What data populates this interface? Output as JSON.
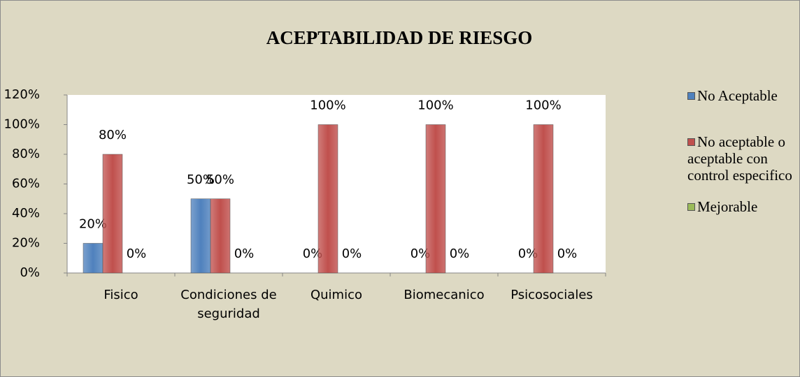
{
  "chart_data": {
    "type": "bar",
    "title": "ACEPTABILIDAD DE RIESGO",
    "categories": [
      "Fisico",
      "Condiciones de seguridad",
      "Quimico",
      "Biomecanico",
      "Psicosociales"
    ],
    "series": [
      {
        "name": "No Aceptable",
        "color": "#4f81bd",
        "values": [
          20,
          50,
          0,
          0,
          0
        ],
        "value_labels": [
          "20%",
          "50%",
          "0%",
          "0%",
          "0%"
        ]
      },
      {
        "name": "No aceptable o aceptable con control especifico",
        "color": "#c0504d",
        "values": [
          80,
          50,
          100,
          100,
          100
        ],
        "value_labels": [
          "80%",
          "50%",
          "100%",
          "100%",
          "100%"
        ]
      },
      {
        "name": "Mejorable",
        "color": "#9bbb59",
        "values": [
          0,
          0,
          0,
          0,
          0
        ],
        "value_labels": [
          "0%",
          "0%",
          "0%",
          "0%",
          "0%"
        ]
      }
    ],
    "ylim": [
      0,
      120
    ],
    "yticks": [
      {
        "value": 0,
        "label": "0%"
      },
      {
        "value": 20,
        "label": "20%"
      },
      {
        "value": 40,
        "label": "40%"
      },
      {
        "value": 60,
        "label": "60%"
      },
      {
        "value": 80,
        "label": "80%"
      },
      {
        "value": 100,
        "label": "100%"
      },
      {
        "value": 120,
        "label": "120%"
      }
    ],
    "legend": "right"
  }
}
